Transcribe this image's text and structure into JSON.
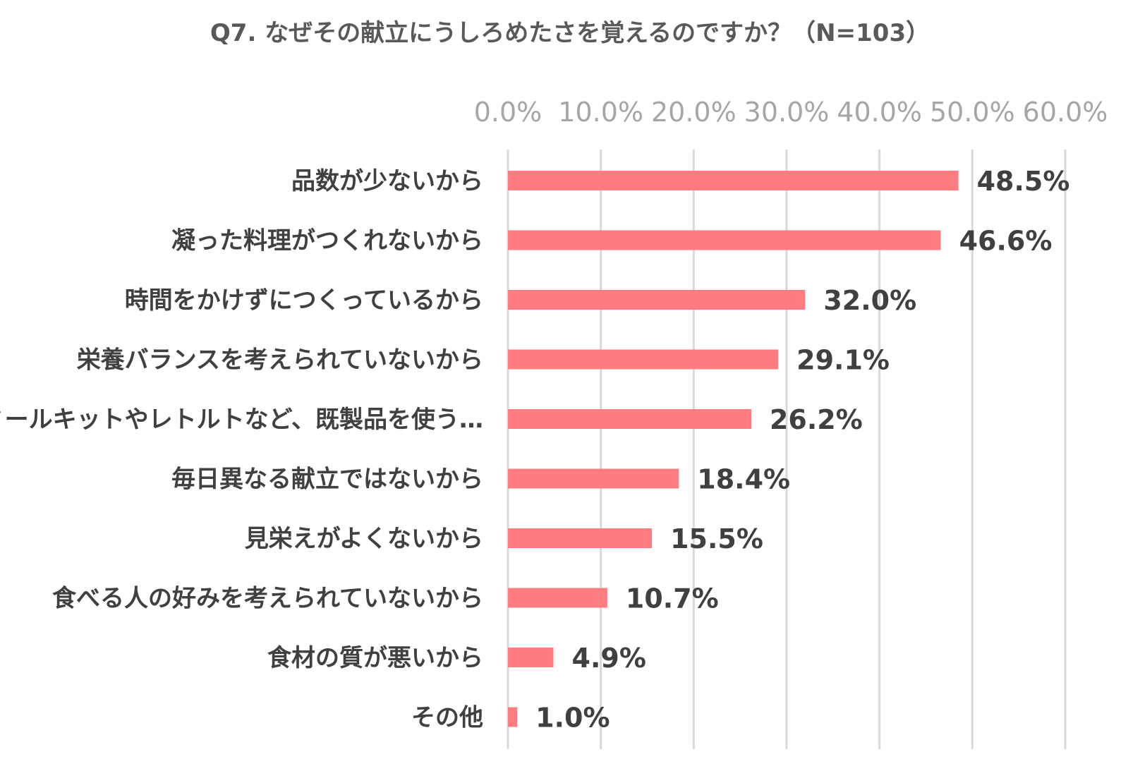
{
  "chart_data": {
    "type": "bar",
    "orientation": "horizontal",
    "title": "Q7. なぜその献立にうしろめたさを覚えるのですか？（N=103）",
    "xlabel": "",
    "ylabel": "",
    "xlim": [
      0,
      60
    ],
    "tick_labels": [
      "0.0%",
      "10.0%",
      "20.0%",
      "30.0%",
      "40.0%",
      "50.0%",
      "60.0%"
    ],
    "tick_values": [
      0,
      10,
      20,
      30,
      40,
      50,
      60
    ],
    "grid": true,
    "axis_position": "top",
    "legend": "none",
    "bar_color": "#ff7c80",
    "categories": [
      "品数が少ないから",
      "凝った料理がつくれないから",
      "時間をかけずにつくっているから",
      "栄養バランスを考えられていないから",
      "ミールキットやレトルトなど、既製品を使う…",
      "毎日異なる献立ではないから",
      "見栄えがよくないから",
      "食べる人の好みを考えられていないから",
      "食材の質が悪いから",
      "その他"
    ],
    "values": [
      48.5,
      46.6,
      32.0,
      29.1,
      26.2,
      18.4,
      15.5,
      10.7,
      4.9,
      1.0
    ],
    "value_labels": [
      "48.5%",
      "46.6%",
      "32.0%",
      "29.1%",
      "26.2%",
      "18.4%",
      "15.5%",
      "10.7%",
      "4.9%",
      "1.0%"
    ]
  }
}
